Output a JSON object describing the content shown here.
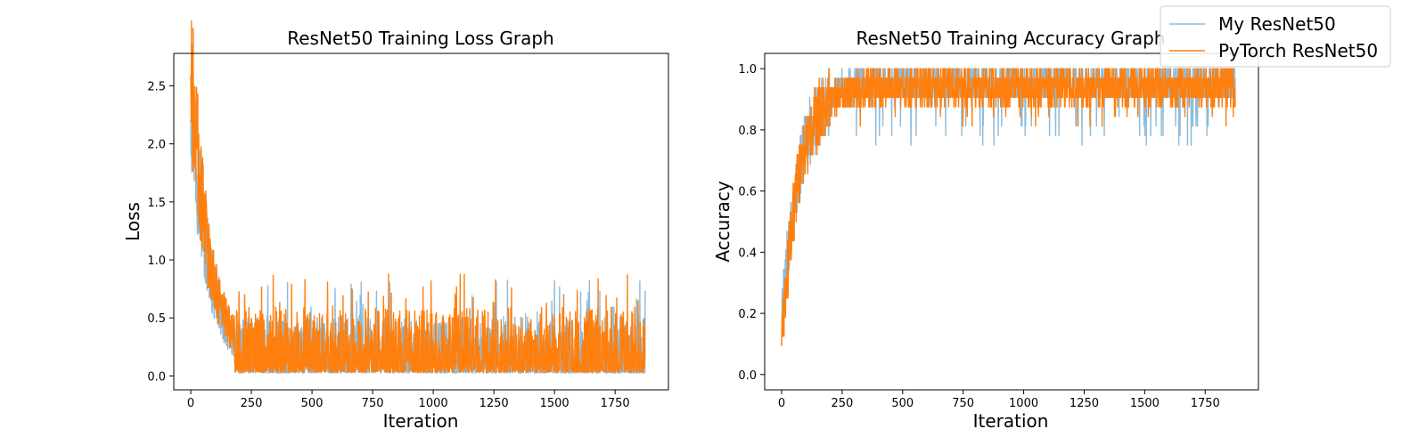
{
  "chart_data": [
    {
      "type": "line",
      "title": "ResNet50 Training Loss Graph",
      "xlabel": "Iteration",
      "ylabel": "Loss",
      "xlim": [
        -70,
        1970
      ],
      "ylim": [
        -0.12,
        2.78
      ],
      "xticks": [
        "0",
        "250",
        "500",
        "750",
        "1000",
        "1250",
        "1500",
        "1750"
      ],
      "yticks": [
        "0.0",
        "0.5",
        "1.0",
        "1.5",
        "2.0",
        "2.5"
      ],
      "grid": false,
      "n_points": 1875,
      "series": [
        {
          "name": "My ResNet50",
          "color": "#1f77b4",
          "alpha": 0.5,
          "start": 2.4,
          "plateau": 0.1,
          "decay_iters": 70,
          "noise_amp": 0.14,
          "noise_cap": 0.84,
          "peak_first": 1.18,
          "peak_later": 0.81
        },
        {
          "name": "PyTorch ResNet50",
          "color": "#ff7f0e",
          "alpha": 1.0,
          "start": 2.6,
          "plateau": 0.13,
          "decay_iters": 70,
          "noise_amp": 0.16,
          "noise_cap": 0.88,
          "peak_first": 1.06,
          "peak_later": 0.75
        }
      ]
    },
    {
      "type": "line",
      "title": "ResNet50 Training Accuracy Graph",
      "xlabel": "Iteration",
      "ylabel": "Accuracy",
      "xlim": [
        -70,
        1970
      ],
      "ylim": [
        -0.05,
        1.05
      ],
      "xticks": [
        "0",
        "250",
        "500",
        "750",
        "1000",
        "1250",
        "1500",
        "1750"
      ],
      "yticks": [
        "0.0",
        "0.2",
        "0.4",
        "0.6",
        "0.8",
        "1.0"
      ],
      "grid": false,
      "n_points": 1875,
      "series": [
        {
          "name": "My ResNet50",
          "color": "#1f77b4",
          "alpha": 0.5,
          "start": 0.15,
          "plateau": 0.95,
          "decay_iters": 70,
          "noise_amp": 0.05,
          "floor": 0.75
        },
        {
          "name": "PyTorch ResNet50",
          "color": "#ff7f0e",
          "alpha": 1.0,
          "start": 0.1,
          "plateau": 0.94,
          "decay_iters": 70,
          "noise_amp": 0.05,
          "floor": 0.81
        }
      ]
    }
  ],
  "legend": {
    "placement": "top-right",
    "entries": [
      "My ResNet50",
      "PyTorch ResNet50"
    ]
  }
}
